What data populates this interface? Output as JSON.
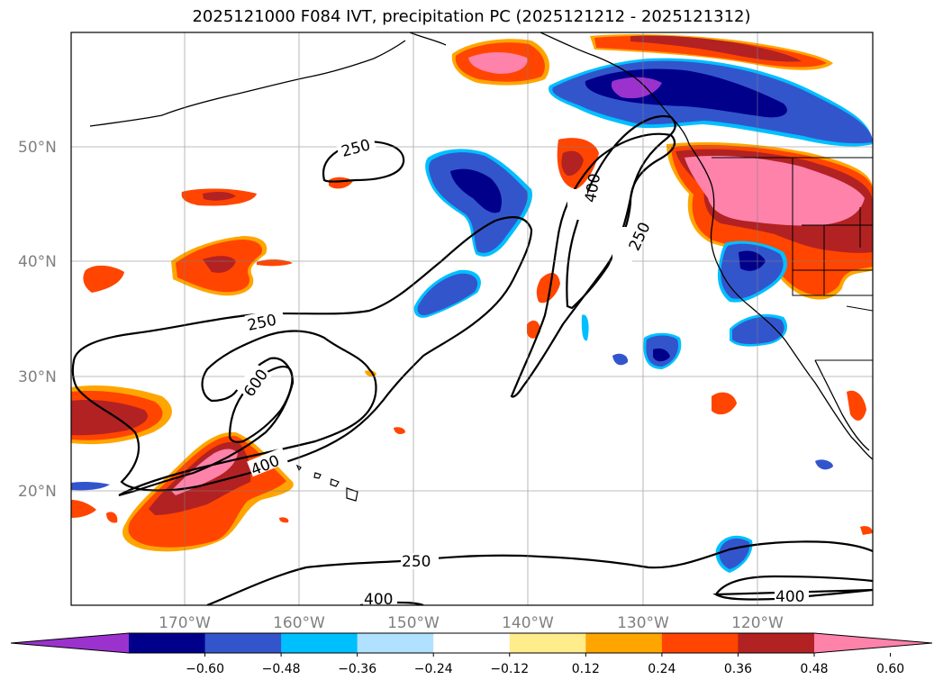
{
  "title": "2025121000 F084 IVT, precipitation PC (2025121212 - 2025121312)",
  "lat_labels": [
    "50°N",
    "40°N",
    "30°N",
    "20°N"
  ],
  "lon_labels": [
    "170°W",
    "160°W",
    "150°W",
    "140°W",
    "130°W",
    "120°W"
  ],
  "ivt_contour_labels": [
    "250",
    "400",
    "250",
    "250",
    "600",
    "400",
    "250",
    "400",
    "400"
  ],
  "colorbar": {
    "ticks": [
      "−0.60",
      "−0.48",
      "−0.36",
      "−0.24",
      "−0.12",
      "0.12",
      "0.24",
      "0.36",
      "0.48",
      "0.60"
    ],
    "colors": [
      "#9b32cd",
      "#00008b",
      "#3355cc",
      "#00bfff",
      "#b0e2ff",
      "#ffffff",
      "#ffec8b",
      "#ffa500",
      "#ff4500",
      "#b22222",
      "#ff82ab"
    ]
  }
}
